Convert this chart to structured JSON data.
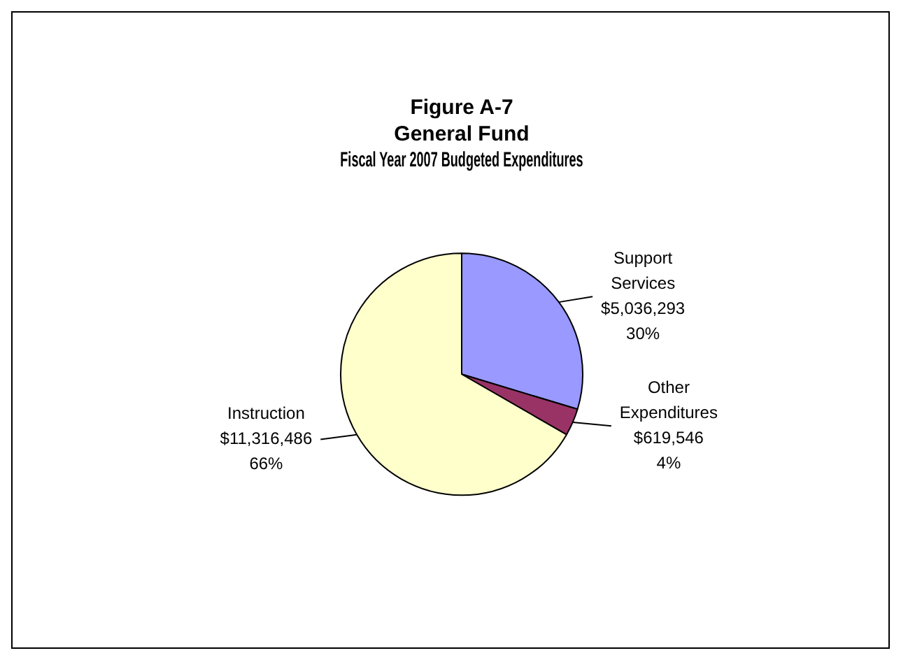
{
  "chart_data": {
    "type": "pie",
    "title": "Figure A-7\nGeneral Fund\nFiscal Year 2007 Budgeted Expenditures",
    "categories": [
      "Support Services",
      "Other Expenditures",
      "Instruction"
    ],
    "values": [
      5036293,
      619546,
      11316486
    ],
    "colors": [
      "#9999ff",
      "#993366",
      "#ffffcc"
    ],
    "value_labels": [
      "$5,036,293\n30%",
      "$619,546\n4%",
      "$11,316,486\n66%"
    ],
    "legend": false
  }
}
